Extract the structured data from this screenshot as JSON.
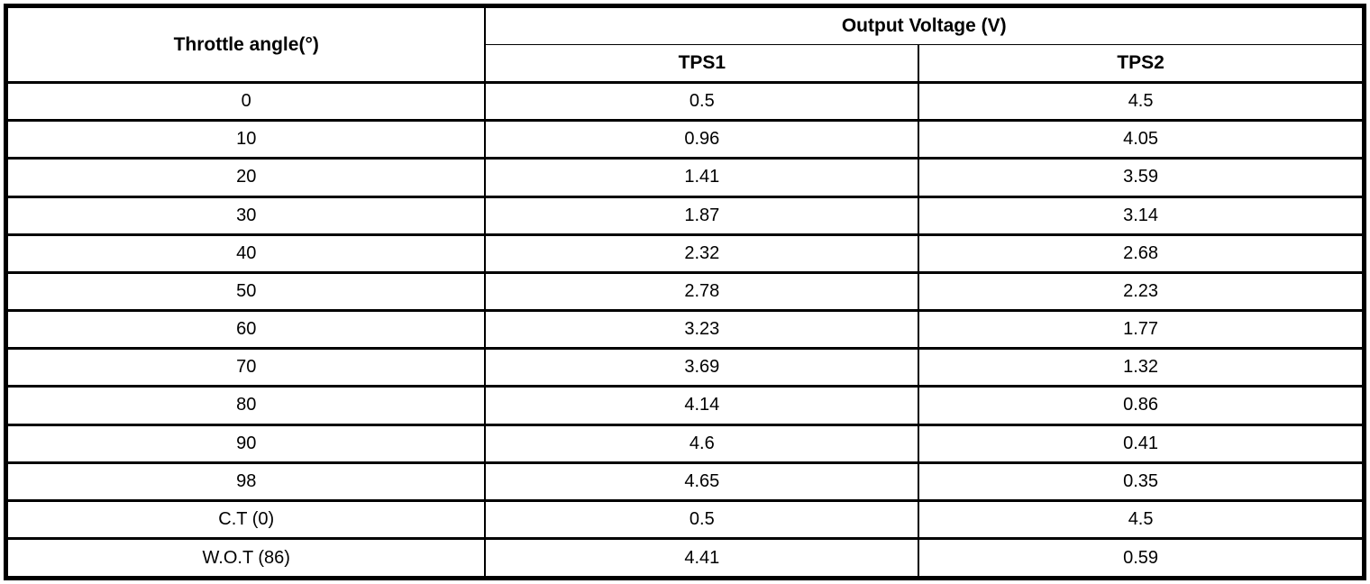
{
  "table": {
    "angle_header": "Throttle angle(°)",
    "voltage_group_header": "Output Voltage (V)",
    "sub_headers": [
      "TPS1",
      "TPS2"
    ],
    "rows": [
      {
        "angle": "0",
        "tps1": "0.5",
        "tps2": "4.5"
      },
      {
        "angle": "10",
        "tps1": "0.96",
        "tps2": "4.05"
      },
      {
        "angle": "20",
        "tps1": "1.41",
        "tps2": "3.59"
      },
      {
        "angle": "30",
        "tps1": "1.87",
        "tps2": "3.14"
      },
      {
        "angle": "40",
        "tps1": "2.32",
        "tps2": "2.68"
      },
      {
        "angle": "50",
        "tps1": "2.78",
        "tps2": "2.23"
      },
      {
        "angle": "60",
        "tps1": "3.23",
        "tps2": "1.77"
      },
      {
        "angle": "70",
        "tps1": "3.69",
        "tps2": "1.32"
      },
      {
        "angle": "80",
        "tps1": "4.14",
        "tps2": "0.86"
      },
      {
        "angle": "90",
        "tps1": "4.6",
        "tps2": "0.41"
      },
      {
        "angle": "98",
        "tps1": "4.65",
        "tps2": "0.35"
      },
      {
        "angle": "C.T (0)",
        "tps1": "0.5",
        "tps2": "4.5"
      },
      {
        "angle": "W.O.T (86)",
        "tps1": "4.41",
        "tps2": "0.59"
      }
    ],
    "colors": {
      "border": "#000000",
      "background": "#ffffff",
      "text": "#000000"
    }
  },
  "chart_data": {
    "type": "table",
    "title": "Output Voltage (V)",
    "columns": [
      "Throttle angle(°)",
      "TPS1",
      "TPS2"
    ],
    "categories": [
      "0",
      "10",
      "20",
      "30",
      "40",
      "50",
      "60",
      "70",
      "80",
      "90",
      "98",
      "C.T (0)",
      "W.O.T (86)"
    ],
    "series": [
      {
        "name": "TPS1",
        "values": [
          0.5,
          0.96,
          1.41,
          1.87,
          2.32,
          2.78,
          3.23,
          3.69,
          4.14,
          4.6,
          4.65,
          0.5,
          4.41
        ]
      },
      {
        "name": "TPS2",
        "values": [
          4.5,
          4.05,
          3.59,
          3.14,
          2.68,
          2.23,
          1.77,
          1.32,
          0.86,
          0.41,
          0.35,
          4.5,
          0.59
        ]
      }
    ]
  }
}
